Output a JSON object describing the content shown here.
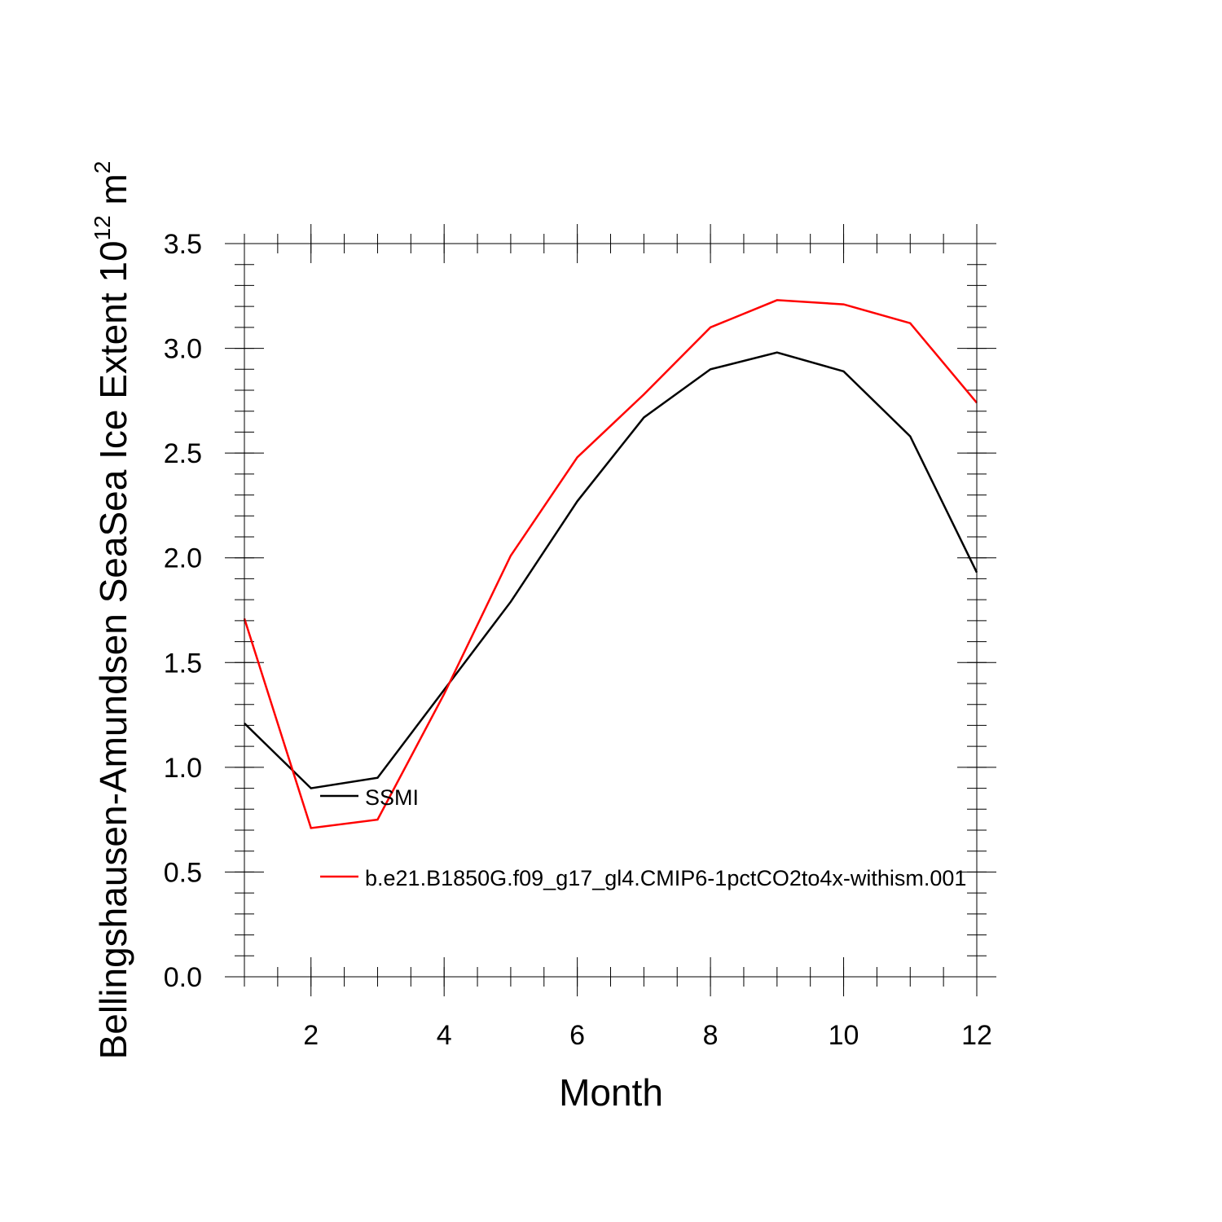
{
  "chart_data": {
    "type": "line",
    "xlabel": "Month",
    "ylabel_text": "Bellingshausen-Amundsen SeaSea Ice Extent 10",
    "ylabel_exponent": "12",
    "ylabel_unit": " m",
    "ylabel_unit_exponent": "2",
    "xlim": [
      1,
      12
    ],
    "ylim": [
      0,
      3.5
    ],
    "x_ticks": [
      2,
      4,
      6,
      8,
      10,
      12
    ],
    "x_tick_labels": [
      "2",
      "4",
      "6",
      "8",
      "10",
      "12"
    ],
    "y_ticks": [
      0,
      0.5,
      1.0,
      1.5,
      2.0,
      2.5,
      3.0,
      3.5
    ],
    "y_tick_labels": [
      "0.0",
      "0.5",
      "1.0",
      "1.5",
      "2.0",
      "2.5",
      "3.0",
      "3.5"
    ],
    "x": [
      1,
      2,
      3,
      4,
      5,
      6,
      7,
      8,
      9,
      10,
      11,
      12
    ],
    "series": [
      {
        "name": "SSMI",
        "color": "#000000",
        "values": [
          1.21,
          0.9,
          0.95,
          1.37,
          1.79,
          2.27,
          2.67,
          2.9,
          2.98,
          2.89,
          2.58,
          1.93
        ]
      },
      {
        "name": "b.e21.B1850G.f09_g17_gl4.CMIP6-1pctCO2to4x-withism.001",
        "color": "#ff0000",
        "values": [
          1.71,
          0.71,
          0.75,
          1.35,
          2.01,
          2.48,
          2.78,
          3.1,
          3.23,
          3.21,
          3.12,
          2.74
        ]
      }
    ],
    "legend_position": "inside-lower-left",
    "grid": false
  }
}
